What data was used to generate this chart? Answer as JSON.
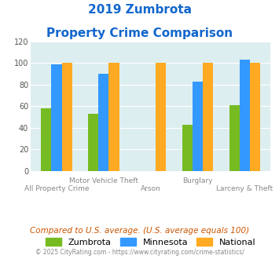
{
  "title_line1": "2019 Zumbrota",
  "title_line2": "Property Crime Comparison",
  "categories": [
    "All Property Crime",
    "Motor Vehicle Theft",
    "Arson",
    "Burglary",
    "Larceny & Theft"
  ],
  "x_labels_top": [
    "",
    "Motor Vehicle Theft",
    "",
    "Burglary",
    ""
  ],
  "x_labels_bottom": [
    "All Property Crime",
    "",
    "Arson",
    "",
    "Larceny & Theft"
  ],
  "zumbrota": [
    58,
    53,
    0,
    43,
    61
  ],
  "minnesota": [
    99,
    90,
    0,
    83,
    103
  ],
  "national": [
    100,
    100,
    100,
    100,
    100
  ],
  "bar_color_zumbrota": "#77bb22",
  "bar_color_minnesota": "#3399ff",
  "bar_color_national": "#ffaa22",
  "ylim": [
    0,
    120
  ],
  "yticks": [
    0,
    20,
    40,
    60,
    80,
    100,
    120
  ],
  "bg_color": "#ddeef0",
  "title_color": "#1166cc",
  "subtitle_note": "Compared to U.S. average. (U.S. average equals 100)",
  "subtitle_note_color": "#cc5500",
  "copyright_text": "© 2025 CityRating.com - https://www.cityrating.com/crime-statistics/",
  "copyright_color": "#888888",
  "legend_labels": [
    "Zumbrota",
    "Minnesota",
    "National"
  ]
}
